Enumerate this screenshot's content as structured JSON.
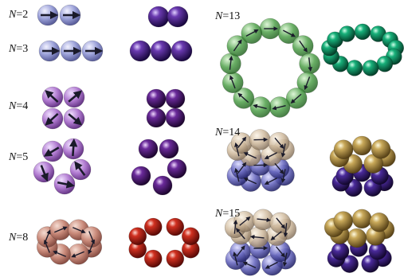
{
  "labels": {
    "n2": {
      "var": "N",
      "eq": "=2"
    },
    "n3": {
      "var": "N",
      "eq": "=3"
    },
    "n4": {
      "var": "N",
      "eq": "=4"
    },
    "n5": {
      "var": "N",
      "eq": "=5"
    },
    "n8": {
      "var": "N",
      "eq": "=8"
    },
    "n13": {
      "var": "N",
      "eq": "=13"
    },
    "n14": {
      "var": "N",
      "eq": "=14"
    },
    "n15": {
      "var": "N",
      "eq": "=15"
    }
  },
  "colors": {
    "lavender": "#9aa0d8",
    "purple_dark": "#3a1a7a",
    "violet_light": "#b07ad0",
    "violet_dark": "#4a1a6a",
    "rose": "#c98a7a",
    "red": "#c0201a",
    "green": "#4fa04a",
    "teal": "#109a6a",
    "tan": "#cdb79a",
    "gold": "#c9a95a",
    "indigo": "#5a5ab0",
    "arrow": "#1a1a2a"
  },
  "icons": [
    "magnetic-sphere-icon",
    "magnetization-arrow-icon"
  ]
}
